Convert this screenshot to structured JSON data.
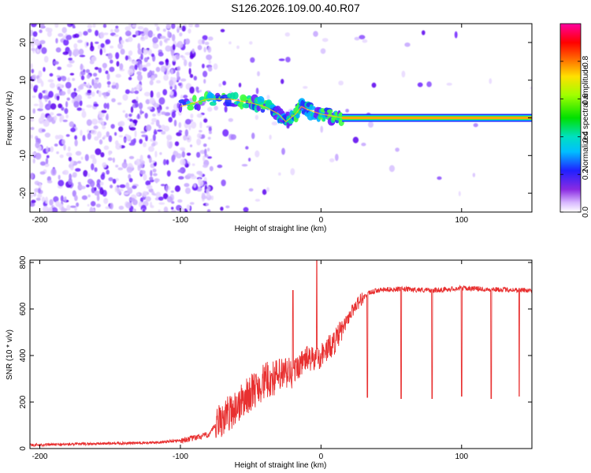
{
  "title": "S126.2026.109.00.40.R07",
  "chart_data": [
    {
      "type": "heatmap",
      "name": "spectrogram",
      "xlabel": "Height of straight line (km)",
      "ylabel": "Frequency (Hz)",
      "xlim": [
        -207,
        150
      ],
      "ylim": [
        -25,
        25
      ],
      "xticks": [
        -200,
        -100,
        0,
        100
      ],
      "xtick_labels": [
        "-200",
        "-100",
        "0",
        "100"
      ],
      "yticks": [
        -20,
        -10,
        0,
        10,
        20
      ],
      "ytick_labels": [
        "-20",
        "-10",
        "0",
        "10",
        "20"
      ],
      "colorbar": {
        "label": "Normalized spectral amplitude",
        "range": [
          0,
          1
        ],
        "ticks": [
          0.0,
          0.2,
          0.4,
          0.6,
          0.8
        ],
        "tick_labels": [
          "0.0",
          "0.2",
          "0.4",
          "0.6",
          "0.8"
        ],
        "colormap": "rainbow (violet-blue-cyan-green-yellow-red-magenta)"
      },
      "tone_path": [
        {
          "x": -100,
          "y": 3
        },
        {
          "x": -80,
          "y": 5
        },
        {
          "x": -65,
          "y": 5
        },
        {
          "x": -50,
          "y": 4
        },
        {
          "x": -40,
          "y": 3
        },
        {
          "x": -30,
          "y": 1
        },
        {
          "x": -25,
          "y": -1
        },
        {
          "x": -18,
          "y": 1
        },
        {
          "x": -14,
          "y": 3
        },
        {
          "x": -8,
          "y": 2
        },
        {
          "x": 0,
          "y": 1
        },
        {
          "x": 8,
          "y": 0.5
        },
        {
          "x": 15,
          "y": 0
        },
        {
          "x": 150,
          "y": 0
        }
      ]
    },
    {
      "type": "line",
      "name": "snr",
      "xlabel": "Height of straight line (km)",
      "ylabel": "SNR (10 * v/v)",
      "xlim": [
        -207,
        150
      ],
      "ylim": [
        0,
        810
      ],
      "xticks": [
        -200,
        -100,
        0,
        100
      ],
      "xtick_labels": [
        "-200",
        "-100",
        "0",
        "100"
      ],
      "yticks": [
        0,
        200,
        400,
        600,
        800
      ],
      "ytick_labels": [
        "0",
        "200",
        "400",
        "600",
        "800"
      ],
      "series": [
        {
          "name": "SNR",
          "color": "#e83030",
          "x": [
            -207,
            -180,
            -150,
            -120,
            -100,
            -90,
            -80,
            -70,
            -60,
            -50,
            -40,
            -30,
            -20,
            -15,
            -10,
            -5,
            0,
            5,
            10,
            15,
            20,
            25,
            30,
            35,
            40,
            50,
            60,
            80,
            100,
            120,
            150
          ],
          "values": [
            15,
            18,
            22,
            25,
            35,
            45,
            60,
            130,
            180,
            240,
            290,
            310,
            330,
            360,
            390,
            380,
            400,
            430,
            460,
            510,
            570,
            620,
            650,
            670,
            680,
            685,
            685,
            680,
            690,
            685,
            680
          ],
          "spikes_down": [
            {
              "x": 33,
              "y": 220
            },
            {
              "x": 57,
              "y": 215
            },
            {
              "x": 79,
              "y": 215
            },
            {
              "x": 100,
              "y": 225
            },
            {
              "x": 121,
              "y": 215
            },
            {
              "x": 141,
              "y": 225
            }
          ],
          "spikes_up": [
            {
              "x": -20,
              "y": 680
            },
            {
              "x": -3,
              "y": 810
            }
          ]
        }
      ]
    }
  ]
}
